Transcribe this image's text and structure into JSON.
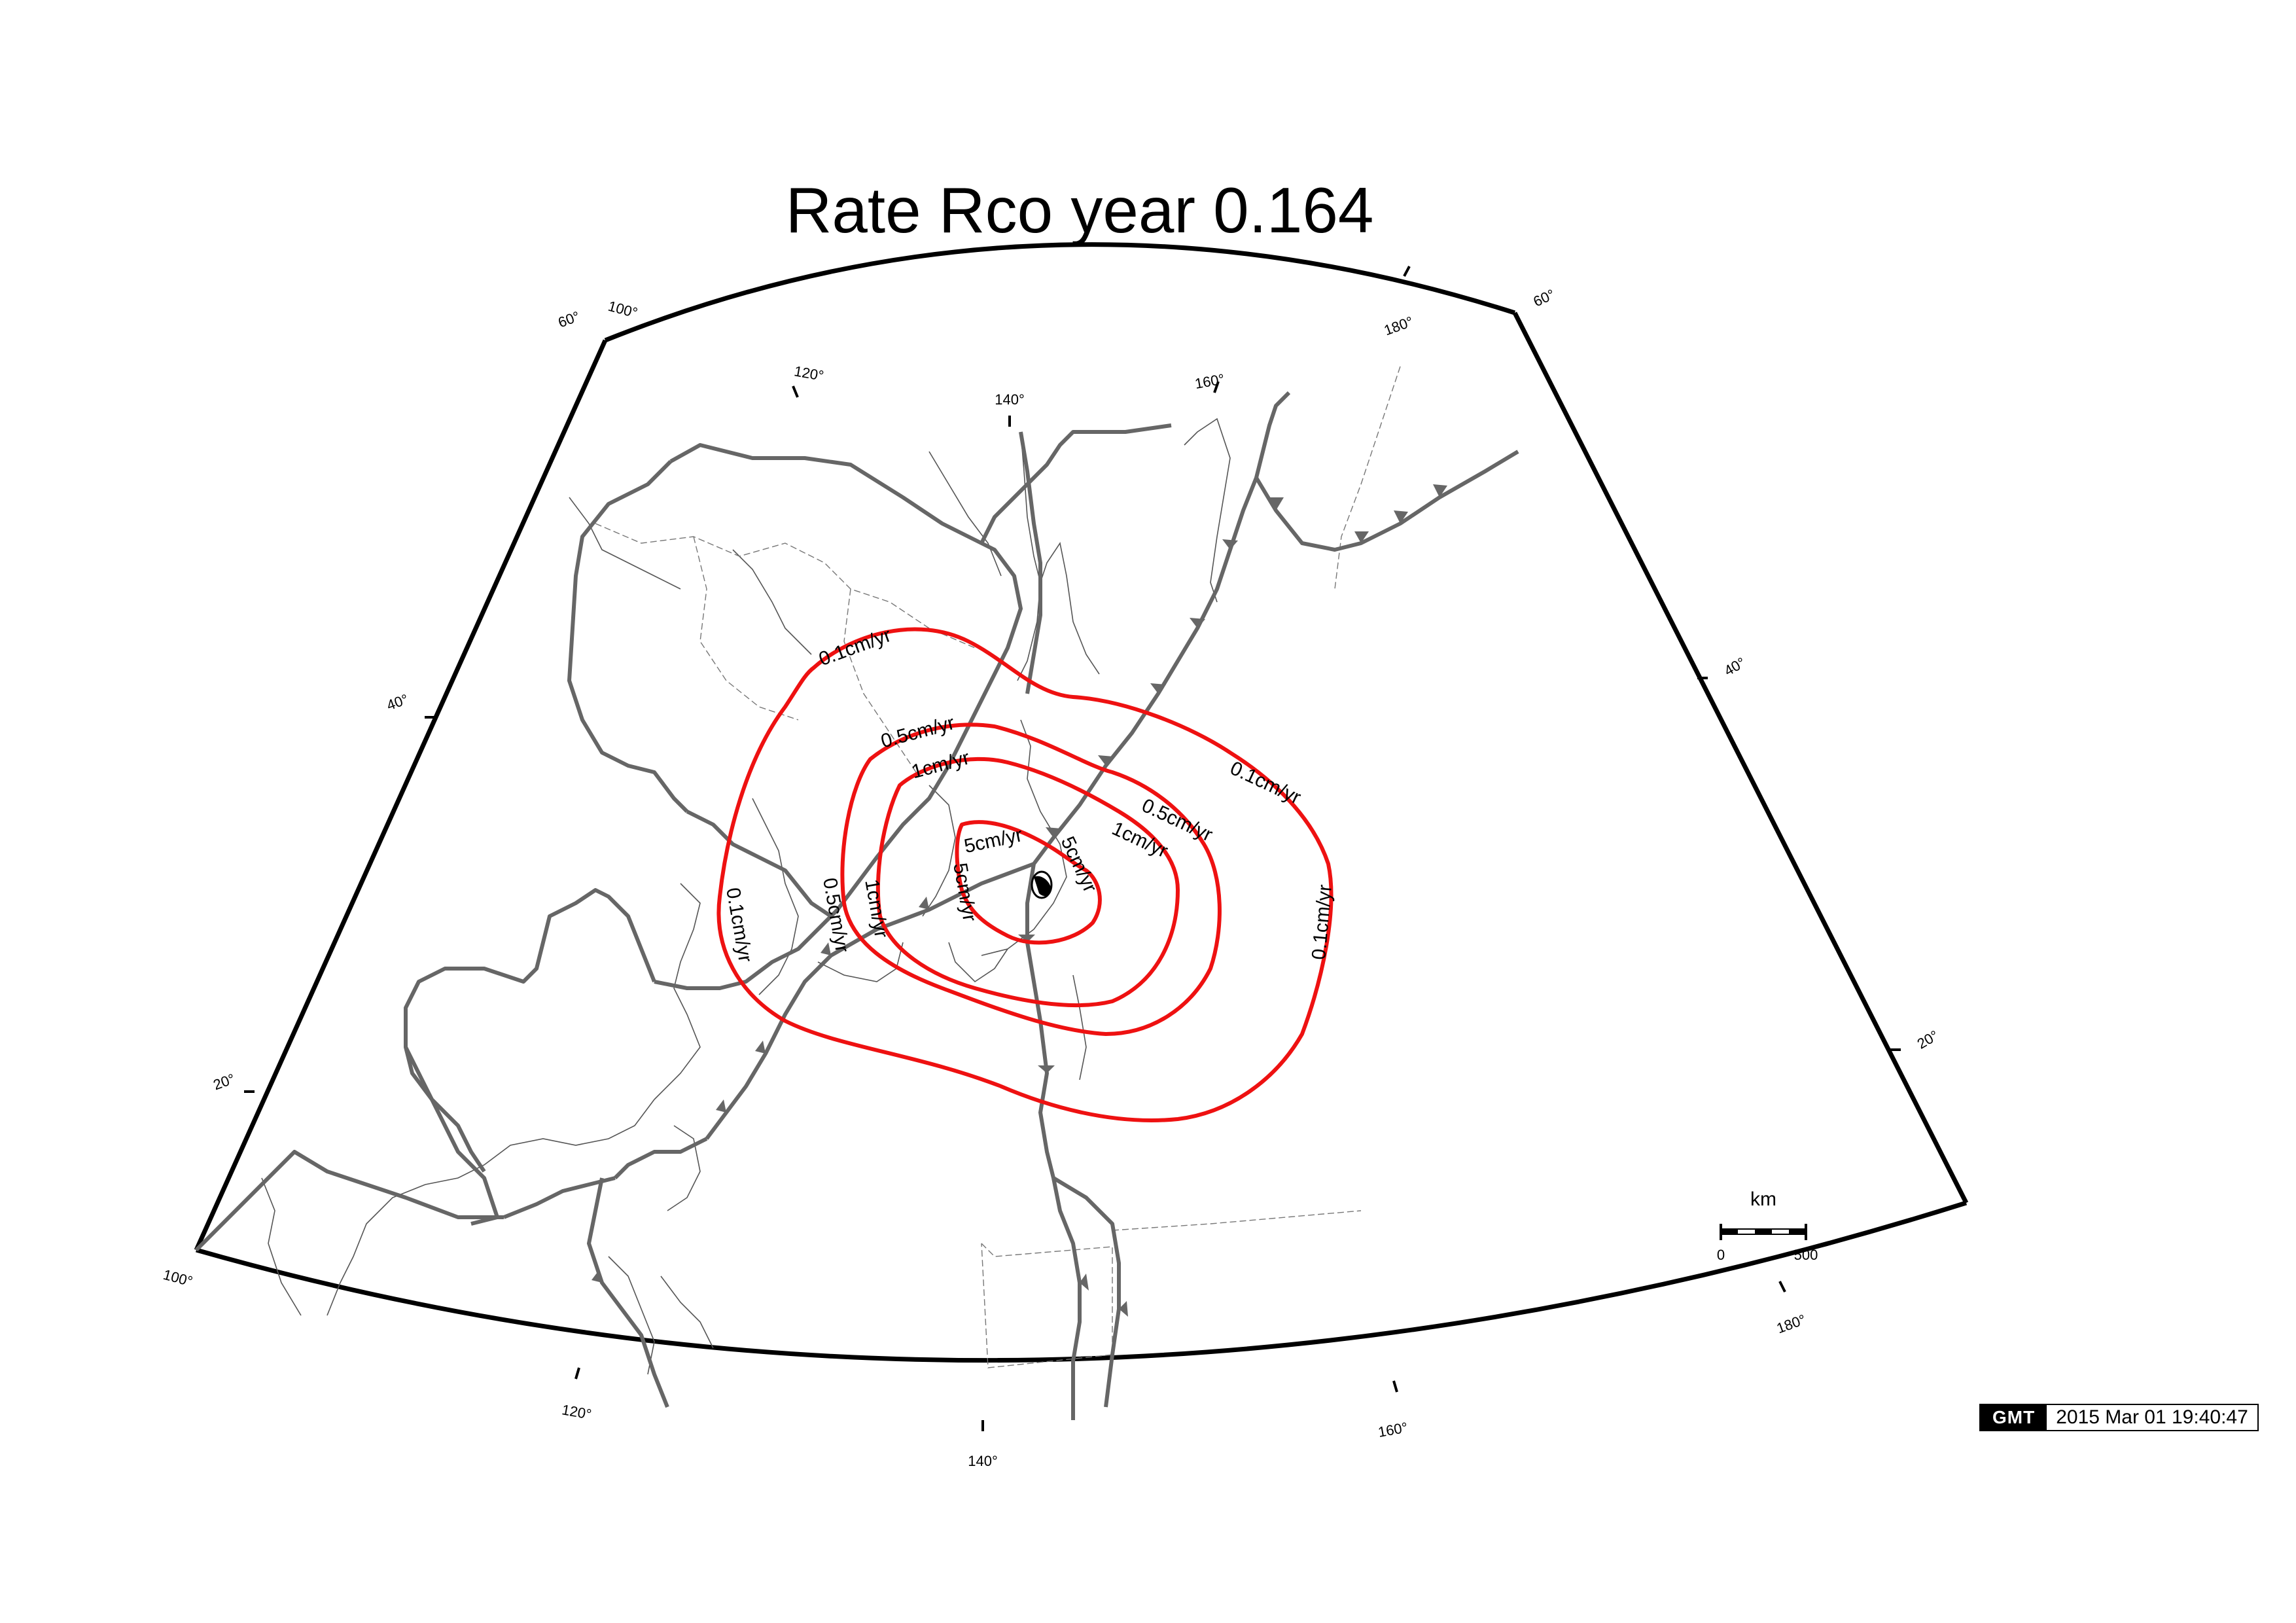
{
  "title": "Rate Rco year 0.164",
  "graticule": {
    "top_arc_lon_labels": [
      "100°",
      "120°",
      "140°",
      "160°",
      "180°"
    ],
    "bottom_arc_lon_labels": [
      "100°",
      "120°",
      "140°",
      "160°",
      "180°"
    ],
    "left_edge_lat_labels": [
      "60°",
      "40°",
      "20°"
    ],
    "right_edge_lat_labels": [
      "60°",
      "40°",
      "20°"
    ]
  },
  "contour_levels": [
    {
      "label": "0.1cm/yr",
      "color": "#ee1111"
    },
    {
      "label": "0.5cm/yr",
      "color": "#ee1111"
    },
    {
      "label": "1cm/yr",
      "color": "#ee1111"
    },
    {
      "label": "5cm/yr",
      "color": "#ee1111"
    }
  ],
  "scale_bar": {
    "unit": "km",
    "min": "0",
    "max": "500"
  },
  "timestamp": {
    "logo": "GMT",
    "text": "2015 Mar 01 19:40:47"
  }
}
